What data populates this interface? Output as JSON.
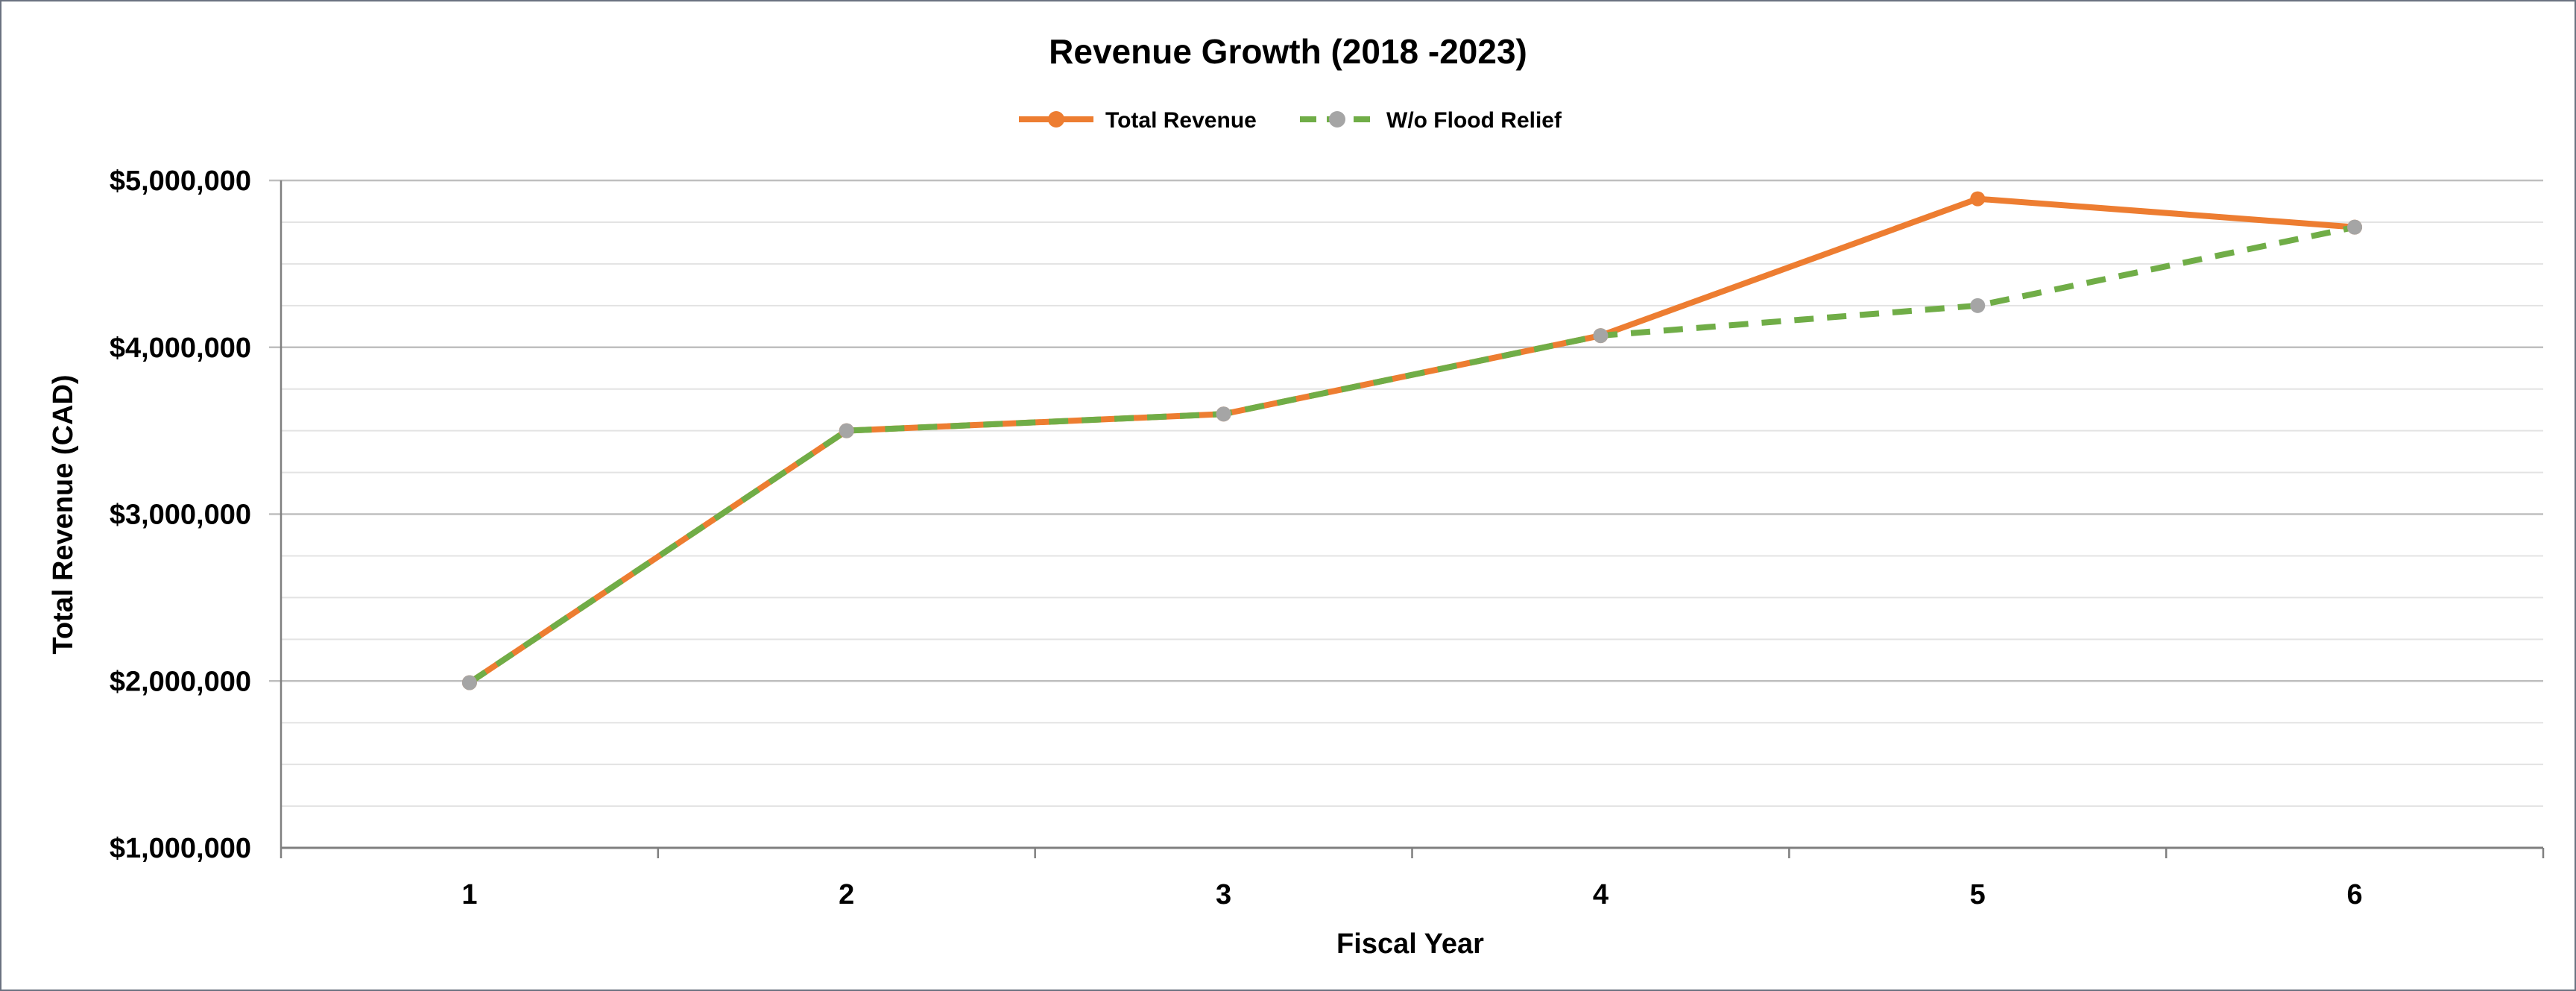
{
  "chart_data": {
    "type": "line",
    "title": "Revenue Growth (2018 -2023)",
    "xlabel": "Fiscal Year",
    "ylabel": "Total Revenue (CAD)",
    "x": [
      1,
      2,
      3,
      4,
      5,
      6
    ],
    "xtick_labels": [
      "1",
      "2",
      "3",
      "4",
      "5",
      "6"
    ],
    "ylim": [
      1000000,
      5000000
    ],
    "ytick_values": [
      1000000,
      2000000,
      3000000,
      4000000,
      5000000
    ],
    "ytick_labels": [
      "$1,000,000",
      "$2,000,000",
      "$3,000,000",
      "$4,000,000",
      "$5,000,000"
    ],
    "grid": {
      "major": true,
      "minor": true
    },
    "legend_position": "top-center",
    "series": [
      {
        "name": "Total Revenue",
        "values": [
          1990000,
          3500000,
          3600000,
          4070000,
          4890000,
          4720000
        ],
        "line_color": "#ED7D31",
        "marker_color": "#ED7D31",
        "line_style": "solid"
      },
      {
        "name": "W/o Flood Relief",
        "values": [
          1990000,
          3500000,
          3600000,
          4070000,
          4250000,
          4720000
        ],
        "line_color": "#70AD47",
        "marker_color": "#A5A5A5",
        "line_style": "dashed"
      }
    ]
  }
}
